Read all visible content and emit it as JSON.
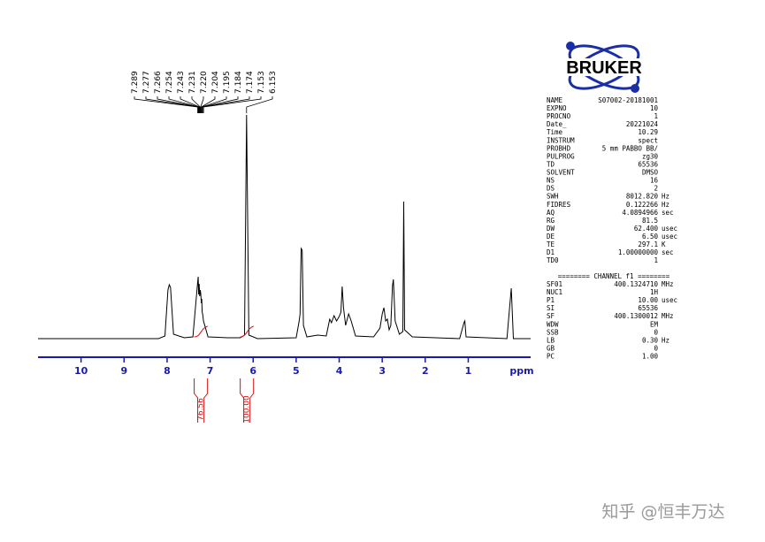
{
  "chart_data": {
    "type": "line",
    "x": [
      11.0,
      8.2,
      8.05,
      7.98,
      7.95,
      7.92,
      7.85,
      7.6,
      7.4,
      7.289,
      7.277,
      7.266,
      7.254,
      7.243,
      7.231,
      7.22,
      7.204,
      7.195,
      7.184,
      7.174,
      7.153,
      7.05,
      6.6,
      6.3,
      6.2,
      6.153,
      6.1,
      5.9,
      5.0,
      4.93,
      4.91,
      4.885,
      4.86,
      4.83,
      4.75,
      4.5,
      4.3,
      4.22,
      4.18,
      4.12,
      4.06,
      4.0,
      3.96,
      3.93,
      3.9,
      3.85,
      3.78,
      3.72,
      3.62,
      3.2,
      3.05,
      3.0,
      2.96,
      2.92,
      2.88,
      2.84,
      2.8,
      2.76,
      2.74,
      2.7,
      2.6,
      2.52,
      2.5,
      2.48,
      2.3,
      1.2,
      1.1,
      1.08,
      1.05,
      0.1,
      0.0,
      -0.05,
      -0.45
    ],
    "series": [
      {
        "color": "#000000",
        "values": [
          0,
          0,
          3,
          55,
          61,
          58,
          5,
          1,
          2,
          64,
          70,
          50,
          62,
          48,
          55,
          52,
          40,
          45,
          30,
          28,
          20,
          2,
          1,
          1,
          4,
          253,
          4,
          0,
          1,
          20,
          28,
          102,
          100,
          15,
          2,
          4,
          3,
          22,
          18,
          26,
          20,
          25,
          30,
          59,
          35,
          15,
          28,
          20,
          3,
          2,
          12,
          28,
          35,
          20,
          22,
          10,
          15,
          60,
          67,
          20,
          5,
          8,
          155,
          10,
          2,
          0,
          18,
          20,
          2,
          0,
          57,
          0,
          0
        ]
      }
    ],
    "xlim": [
      11.0,
      -0.45
    ],
    "ylim": [
      0,
      253
    ],
    "xticks": [
      10,
      9,
      8,
      7,
      6,
      5,
      4,
      3,
      2,
      1
    ],
    "x_label": "ppm",
    "axis_color": "#1a1aaa",
    "peaks": {
      "values": [
        7.289,
        7.277,
        7.266,
        7.254,
        7.243,
        7.231,
        7.22,
        7.204,
        7.195,
        7.184,
        7.174,
        7.153,
        6.153
      ],
      "value_labels": [
        "7.289",
        "7.277",
        "7.266",
        "7.254",
        "7.243",
        "7.231",
        "7.220",
        "7.204",
        "7.195",
        "7.184",
        "7.174",
        "7.153",
        "6.153"
      ]
    },
    "integrals": {
      "ranges": [
        [
          7.37,
          7.06
        ],
        [
          6.3,
          5.99
        ]
      ],
      "values": [
        76.56,
        100
      ],
      "value_labels": [
        "76.56",
        "100.00"
      ],
      "color": "#d01010"
    }
  },
  "logo": "BRUKER",
  "parameters": {
    "acquisition": [
      [
        "NAME",
        "S07002-20181001",
        ""
      ],
      [
        "EXPNO",
        "10",
        ""
      ],
      [
        "PROCNO",
        "1",
        ""
      ],
      [
        "Date_",
        "20221024",
        ""
      ],
      [
        "Time",
        "10.29",
        ""
      ],
      [
        "INSTRUM",
        "spect",
        ""
      ],
      [
        "PROBHD",
        "5 mm PABBO BB/",
        ""
      ],
      [
        "PULPROG",
        "zg30",
        ""
      ],
      [
        "TD",
        "65536",
        ""
      ],
      [
        "SOLVENT",
        "DMSO",
        ""
      ],
      [
        "NS",
        "16",
        ""
      ],
      [
        "DS",
        "2",
        ""
      ],
      [
        "SWH",
        "8012.820",
        "Hz"
      ],
      [
        "FIDRES",
        "0.122266",
        "Hz"
      ],
      [
        "AQ",
        "4.0894966",
        "sec"
      ],
      [
        "RG",
        "81.5",
        ""
      ],
      [
        "DW",
        "62.400",
        "usec"
      ],
      [
        "DE",
        "6.50",
        "usec"
      ],
      [
        "TE",
        "297.1",
        "K"
      ],
      [
        "D1",
        "1.00000000",
        "sec"
      ],
      [
        "TD0",
        "1",
        ""
      ]
    ],
    "channel_header": "======== CHANNEL f1 ========",
    "channel": [
      [
        "SF01",
        "400.1324710",
        "MHz"
      ],
      [
        "NUC1",
        "1H",
        ""
      ],
      [
        "P1",
        "10.00",
        "usec"
      ],
      [
        "SI",
        "65536",
        ""
      ],
      [
        "SF",
        "400.1300012",
        "MHz"
      ],
      [
        "WDW",
        "EM",
        ""
      ],
      [
        "SSB",
        "0",
        ""
      ],
      [
        "LB",
        "0.30",
        "Hz"
      ],
      [
        "GB",
        "0",
        ""
      ],
      [
        "PC",
        "1.00",
        ""
      ]
    ]
  },
  "watermark": "知乎 @恒丰万达"
}
